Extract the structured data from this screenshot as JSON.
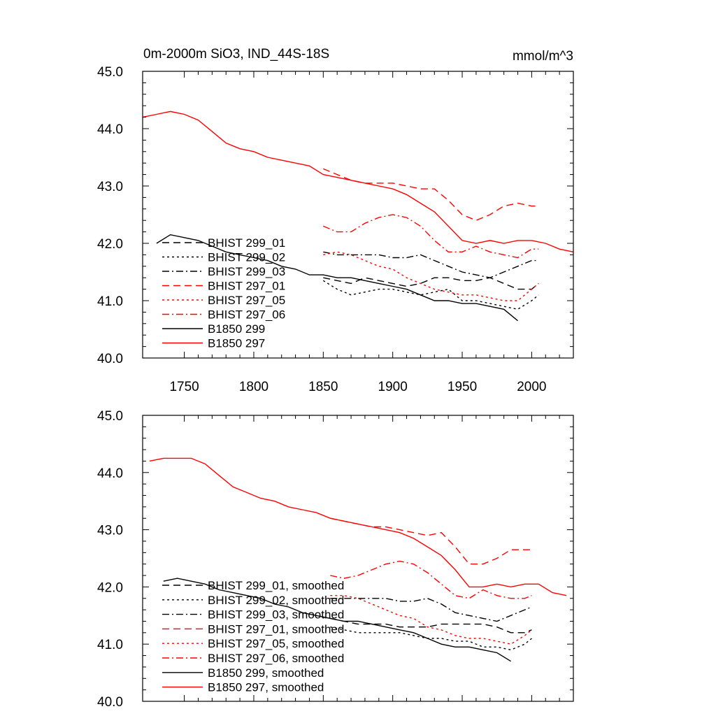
{
  "chart_data": [
    {
      "type": "line",
      "title": "0m-2000m SiO3, IND_44S-18S",
      "units": "mmol/m^3",
      "xlabel": "",
      "ylabel": "",
      "xlim": [
        1720,
        2030
      ],
      "ylim": [
        40.0,
        45.0
      ],
      "x_ticks": [
        1750,
        1800,
        1850,
        1900,
        1950,
        2000
      ],
      "x_tick_labels": [
        "1750",
        "1800",
        "1850",
        "1900",
        "1950",
        "2000"
      ],
      "y_ticks": [
        40.0,
        41.0,
        42.0,
        43.0,
        44.0,
        45.0
      ],
      "y_tick_labels": [
        "40.0",
        "41.0",
        "42.0",
        "43.0",
        "44.0",
        "45.0"
      ],
      "grid": false,
      "legend_position": "lower-left",
      "series": [
        {
          "name": "BHIST 299_01",
          "color": "#000000",
          "dash": "long-dash",
          "x": [
            1850,
            1860,
            1870,
            1880,
            1890,
            1900,
            1910,
            1920,
            1930,
            1940,
            1950,
            1960,
            1970,
            1980,
            1990,
            2000,
            2005
          ],
          "y": [
            41.4,
            41.35,
            41.3,
            41.4,
            41.35,
            41.3,
            41.25,
            41.3,
            41.4,
            41.4,
            41.35,
            41.35,
            41.4,
            41.3,
            41.2,
            41.2,
            41.3
          ]
        },
        {
          "name": "BHIST 299_02",
          "color": "#000000",
          "dash": "dotted",
          "x": [
            1850,
            1860,
            1870,
            1880,
            1890,
            1900,
            1910,
            1920,
            1930,
            1940,
            1950,
            1960,
            1970,
            1980,
            1990,
            2000,
            2005
          ],
          "y": [
            41.35,
            41.2,
            41.1,
            41.15,
            41.2,
            41.2,
            41.15,
            41.1,
            41.15,
            41.2,
            41.0,
            41.0,
            40.95,
            40.9,
            40.85,
            41.0,
            41.1
          ]
        },
        {
          "name": "BHIST 299_03",
          "color": "#000000",
          "dash": "dash-dot",
          "x": [
            1850,
            1860,
            1870,
            1880,
            1890,
            1900,
            1910,
            1920,
            1930,
            1940,
            1950,
            1960,
            1970,
            1980,
            1990,
            2000,
            2005
          ],
          "y": [
            41.85,
            41.8,
            41.8,
            41.8,
            41.8,
            41.75,
            41.75,
            41.8,
            41.7,
            41.6,
            41.5,
            41.45,
            41.4,
            41.5,
            41.6,
            41.7,
            41.7
          ]
        },
        {
          "name": "BHIST 297_01",
          "color": "#ff0000",
          "dash": "long-dash",
          "x": [
            1850,
            1860,
            1870,
            1880,
            1890,
            1900,
            1910,
            1920,
            1930,
            1940,
            1950,
            1960,
            1970,
            1980,
            1990,
            2000,
            2005
          ],
          "y": [
            43.3,
            43.2,
            43.1,
            43.05,
            43.05,
            43.05,
            43.0,
            42.95,
            42.95,
            42.75,
            42.5,
            42.4,
            42.5,
            42.65,
            42.7,
            42.65,
            42.65
          ]
        },
        {
          "name": "BHIST 297_05",
          "color": "#ff0000",
          "dash": "dotted",
          "x": [
            1850,
            1860,
            1870,
            1880,
            1890,
            1900,
            1910,
            1920,
            1930,
            1940,
            1950,
            1960,
            1970,
            1980,
            1990,
            2000,
            2005
          ],
          "y": [
            41.8,
            41.85,
            41.8,
            41.7,
            41.6,
            41.55,
            41.4,
            41.3,
            41.2,
            41.15,
            41.1,
            41.1,
            41.05,
            41.0,
            41.0,
            41.2,
            41.3
          ]
        },
        {
          "name": "BHIST 297_06",
          "color": "#ff0000",
          "dash": "dash-dot",
          "x": [
            1850,
            1860,
            1870,
            1880,
            1890,
            1900,
            1910,
            1920,
            1930,
            1940,
            1950,
            1960,
            1970,
            1980,
            1990,
            2000,
            2005
          ],
          "y": [
            42.3,
            42.2,
            42.2,
            42.35,
            42.45,
            42.5,
            42.45,
            42.3,
            42.05,
            41.85,
            41.85,
            41.95,
            41.85,
            41.8,
            41.75,
            41.9,
            41.9
          ]
        },
        {
          "name": "B1850 299",
          "color": "#000000",
          "dash": "solid",
          "x": [
            1730,
            1740,
            1750,
            1760,
            1770,
            1780,
            1790,
            1800,
            1810,
            1820,
            1830,
            1840,
            1850,
            1860,
            1870,
            1880,
            1890,
            1900,
            1910,
            1920,
            1930,
            1940,
            1950,
            1960,
            1970,
            1980,
            1990
          ],
          "y": [
            42.0,
            42.15,
            42.1,
            42.05,
            41.95,
            41.85,
            41.8,
            41.75,
            41.7,
            41.6,
            41.55,
            41.45,
            41.45,
            41.4,
            41.4,
            41.35,
            41.3,
            41.25,
            41.2,
            41.1,
            41.0,
            41.0,
            40.95,
            40.95,
            40.9,
            40.85,
            40.65
          ]
        },
        {
          "name": "B1850 297",
          "color": "#ff0000",
          "dash": "solid",
          "x": [
            1720,
            1730,
            1740,
            1750,
            1760,
            1770,
            1780,
            1790,
            1800,
            1810,
            1820,
            1830,
            1840,
            1850,
            1860,
            1870,
            1880,
            1890,
            1900,
            1910,
            1920,
            1930,
            1940,
            1950,
            1960,
            1970,
            1980,
            1990,
            2000,
            2010,
            2020,
            2030
          ],
          "y": [
            44.2,
            44.25,
            44.3,
            44.25,
            44.15,
            43.95,
            43.75,
            43.65,
            43.6,
            43.5,
            43.45,
            43.4,
            43.35,
            43.2,
            43.15,
            43.1,
            43.05,
            43.0,
            42.95,
            42.85,
            42.7,
            42.55,
            42.3,
            42.05,
            42.0,
            42.05,
            42.0,
            42.05,
            42.05,
            42.0,
            41.9,
            41.85
          ]
        }
      ]
    },
    {
      "type": "line",
      "title": "",
      "xlabel": "",
      "ylabel": "",
      "xlim": [
        1720,
        2030
      ],
      "ylim": [
        40.0,
        45.0
      ],
      "y_ticks": [
        40.0,
        41.0,
        42.0,
        43.0,
        44.0,
        45.0
      ],
      "y_tick_labels": [
        "40.0",
        "41.0",
        "42.0",
        "43.0",
        "44.0",
        "45.0"
      ],
      "grid": false,
      "legend_position": "lower-left",
      "series": [
        {
          "name": "BHIST 299_01, smoothed",
          "color": "#000000",
          "dash": "long-dash",
          "x": [
            1855,
            1865,
            1875,
            1885,
            1895,
            1905,
            1915,
            1925,
            1935,
            1945,
            1955,
            1965,
            1975,
            1985,
            1995,
            2000
          ],
          "y": [
            41.45,
            41.4,
            41.35,
            41.35,
            41.35,
            41.3,
            41.3,
            41.3,
            41.35,
            41.35,
            41.35,
            41.35,
            41.3,
            41.2,
            41.2,
            41.25
          ]
        },
        {
          "name": "BHIST 299_02, smoothed",
          "color": "#000000",
          "dash": "dotted",
          "x": [
            1855,
            1865,
            1875,
            1885,
            1895,
            1905,
            1915,
            1925,
            1935,
            1945,
            1955,
            1965,
            1975,
            1985,
            1995,
            2000
          ],
          "y": [
            41.3,
            41.25,
            41.2,
            41.2,
            41.2,
            41.2,
            41.15,
            41.1,
            41.1,
            41.05,
            41.05,
            40.95,
            40.95,
            40.9,
            41.0,
            41.1
          ]
        },
        {
          "name": "BHIST 299_03, smoothed",
          "color": "#000000",
          "dash": "dash-dot",
          "x": [
            1855,
            1865,
            1875,
            1885,
            1895,
            1905,
            1915,
            1925,
            1935,
            1945,
            1955,
            1965,
            1975,
            1985,
            1995,
            2000
          ],
          "y": [
            41.8,
            41.8,
            41.8,
            41.8,
            41.8,
            41.75,
            41.75,
            41.8,
            41.7,
            41.55,
            41.5,
            41.45,
            41.4,
            41.5,
            41.6,
            41.65
          ]
        },
        {
          "name": "BHIST 297_01, smoothed",
          "color": "#ff0000",
          "dash": "long-dash",
          "x": [
            1855,
            1865,
            1875,
            1885,
            1895,
            1905,
            1915,
            1925,
            1935,
            1945,
            1955,
            1965,
            1975,
            1985,
            1995,
            2000
          ],
          "y": [
            43.2,
            43.15,
            43.1,
            43.05,
            43.05,
            43.0,
            42.95,
            42.9,
            42.95,
            42.7,
            42.4,
            42.4,
            42.5,
            42.65,
            42.65,
            42.65
          ]
        },
        {
          "name": "BHIST 297_05, smoothed",
          "color": "#ff0000",
          "dash": "dotted",
          "x": [
            1855,
            1865,
            1875,
            1885,
            1895,
            1905,
            1915,
            1925,
            1935,
            1945,
            1955,
            1965,
            1975,
            1985,
            1995,
            2000
          ],
          "y": [
            41.85,
            41.85,
            41.8,
            41.7,
            41.6,
            41.5,
            41.45,
            41.3,
            41.25,
            41.15,
            41.1,
            41.1,
            41.05,
            41.0,
            41.15,
            41.25
          ]
        },
        {
          "name": "BHIST 297_06, smoothed",
          "color": "#ff0000",
          "dash": "dash-dot",
          "x": [
            1855,
            1865,
            1875,
            1885,
            1895,
            1905,
            1915,
            1925,
            1935,
            1945,
            1955,
            1965,
            1975,
            1985,
            1995,
            2000
          ],
          "y": [
            42.2,
            42.15,
            42.2,
            42.3,
            42.4,
            42.45,
            42.4,
            42.25,
            42.05,
            41.85,
            41.8,
            41.95,
            41.85,
            41.8,
            41.8,
            41.85
          ]
        },
        {
          "name": "B1850 299, smoothed",
          "color": "#000000",
          "dash": "solid",
          "x": [
            1735,
            1745,
            1755,
            1765,
            1775,
            1785,
            1795,
            1805,
            1815,
            1825,
            1835,
            1845,
            1855,
            1865,
            1875,
            1885,
            1895,
            1905,
            1915,
            1925,
            1935,
            1945,
            1955,
            1965,
            1975,
            1985
          ],
          "y": [
            42.1,
            42.15,
            42.1,
            42.05,
            41.95,
            41.9,
            41.85,
            41.8,
            41.7,
            41.65,
            41.55,
            41.5,
            41.45,
            41.4,
            41.4,
            41.35,
            41.3,
            41.25,
            41.2,
            41.1,
            41.0,
            40.95,
            40.95,
            40.9,
            40.85,
            40.7
          ]
        },
        {
          "name": "B1850 297, smoothed",
          "color": "#ff0000",
          "dash": "solid",
          "x": [
            1725,
            1735,
            1745,
            1755,
            1765,
            1775,
            1785,
            1795,
            1805,
            1815,
            1825,
            1835,
            1845,
            1855,
            1865,
            1875,
            1885,
            1895,
            1905,
            1915,
            1925,
            1935,
            1945,
            1955,
            1965,
            1975,
            1985,
            1995,
            2005,
            2015,
            2025
          ],
          "y": [
            44.2,
            44.25,
            44.25,
            44.25,
            44.15,
            43.95,
            43.75,
            43.65,
            43.55,
            43.5,
            43.4,
            43.35,
            43.3,
            43.2,
            43.15,
            43.1,
            43.05,
            43.0,
            42.95,
            42.85,
            42.7,
            42.55,
            42.3,
            42.0,
            42.0,
            42.05,
            42.0,
            42.05,
            42.05,
            41.9,
            41.85
          ]
        }
      ]
    }
  ]
}
